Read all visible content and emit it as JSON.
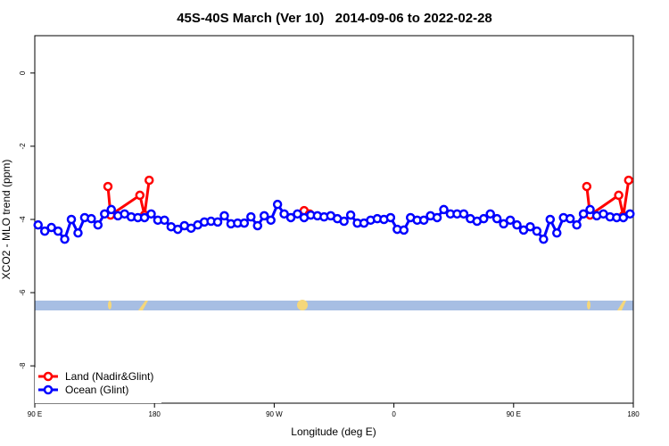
{
  "chart_data": {
    "type": "line",
    "title": "45S-40S March (Ver 10)   2014-09-06 to 2022-02-28",
    "xlabel": "Longitude (deg E)",
    "ylabel": "XCO2 - MLO trend (ppm)",
    "xlim": [
      90,
      540
    ],
    "ylim": [
      -9.02,
      1.02
    ],
    "xticks": [
      {
        "value": 90,
        "label": "90 E"
      },
      180,
      {
        "value": 270,
        "label": "90 W"
      },
      {
        "value": 360,
        "label": "0"
      },
      {
        "value": 450,
        "label": "90 E"
      },
      {
        "value": 540,
        "label": "180"
      }
    ],
    "yticks": [
      0,
      -2,
      -4,
      -6,
      -8
    ],
    "legend": "bottom-left",
    "series": [
      {
        "name": "Land (Nadir&Glint)",
        "color": "#ff0000",
        "x": [
          145,
          147,
          169,
          172.5,
          176,
          230,
          292.5,
          296.6,
          400,
          505,
          507.5,
          529,
          532.5,
          536.5
        ],
        "values": [
          -3.1,
          -3.88,
          -3.34,
          -3.88,
          -2.93,
          null,
          -3.76,
          -3.85,
          null,
          -3.1,
          -3.88,
          -3.34,
          -3.9,
          -2.93
        ]
      },
      {
        "name": "Ocean (Glint)",
        "color": "#0000ff",
        "x": [
          92.5,
          97.5,
          102.5,
          107.5,
          112.5,
          117.5,
          122.5,
          127.5,
          132.5,
          137.5,
          142.5,
          147.5,
          152.5,
          157.5,
          162.5,
          167.5,
          172.5,
          177.5,
          182.5,
          187.5,
          192.5,
          197.5,
          202.5,
          207.5,
          212.5,
          217.5,
          222.5,
          227.5,
          232.5,
          237.5,
          242.5,
          247.5,
          252.5,
          257.5,
          262.5,
          267.5,
          272.5,
          277.5,
          282.5,
          287.5,
          292.5,
          297.5,
          302.5,
          307.5,
          312.5,
          317.5,
          322.5,
          327.5,
          332.5,
          337.5,
          342.5,
          347.5,
          352.5,
          357.5,
          362.5,
          367.5,
          372.5,
          377.5,
          382.5,
          387.5,
          392.5,
          397.5,
          402.5,
          407.5,
          412.5,
          417.5,
          422.5,
          427.5,
          432.5,
          437.5,
          442.5,
          447.5,
          452.5,
          457.5,
          462.5,
          467.5,
          472.5,
          477.5,
          482.5,
          487.5,
          492.5,
          497.5,
          502.5,
          507.5,
          512.5,
          517.5,
          522.5,
          527.5,
          532.5,
          537.5
        ],
        "values": [
          -4.15,
          -4.32,
          -4.22,
          -4.32,
          -4.54,
          -4.0,
          -4.37,
          -3.95,
          -3.98,
          -4.15,
          -3.85,
          -3.73,
          -3.9,
          -3.85,
          -3.93,
          -3.95,
          -3.95,
          -3.85,
          -4.02,
          -4.02,
          -4.2,
          -4.27,
          -4.17,
          -4.24,
          -4.15,
          -4.07,
          -4.05,
          -4.07,
          -3.9,
          -4.12,
          -4.1,
          -4.1,
          -3.93,
          -4.17,
          -3.9,
          -4.02,
          -3.59,
          -3.85,
          -3.95,
          -3.85,
          -3.95,
          -3.88,
          -3.9,
          -3.93,
          -3.9,
          -3.98,
          -4.05,
          -3.88,
          -4.1,
          -4.1,
          -4.02,
          -3.98,
          -4.0,
          -3.95,
          -4.27,
          -4.29,
          -3.95,
          -4.02,
          -4.02,
          -3.9,
          -3.95,
          -3.73,
          -3.85,
          -3.85,
          -3.85,
          -3.98,
          -4.05,
          -3.98,
          -3.85,
          -3.98,
          -4.12,
          -4.02,
          -4.15,
          -4.29,
          -4.2,
          -4.32,
          -4.54,
          -4.0,
          -4.37,
          -3.95,
          -3.98,
          -4.15,
          -3.85,
          -3.73,
          -3.9,
          -3.85,
          -3.93,
          -3.95,
          -3.95,
          -3.85
        ]
      }
    ]
  }
}
